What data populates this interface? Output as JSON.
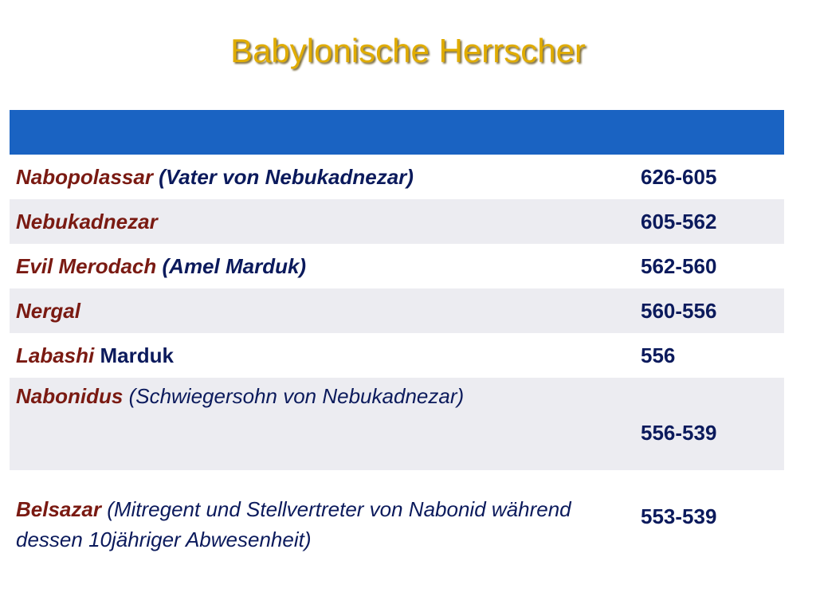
{
  "title": "Babylonische Herrscher",
  "rows": [
    {
      "name": "Nabopolassar",
      "note": " (Vater von Nebukadnezar)",
      "years": "626-605"
    },
    {
      "name": "Nebukadnezar",
      "note": "",
      "years": "605-562"
    },
    {
      "name": "Evil Merodach",
      "note": " (Amel Marduk)",
      "years": "562-560"
    },
    {
      "name": "Nergal",
      "note": "",
      "years": "560-556"
    },
    {
      "name": "Labashi",
      "note": " Marduk",
      "years": "556"
    },
    {
      "name": "Nabonidus",
      "note": " (Schwiegersohn von Nebukadnezar)",
      "years": "556-539"
    },
    {
      "name": "Belsazar",
      "note": " (Mitregent und Stellvertreter von Nabonid während dessen 10jähriger Abwesenheit)",
      "years": "553-539"
    }
  ],
  "colors": {
    "title": "#e0ac00",
    "header_bar": "#1a63c2",
    "row_light": "#ececf1",
    "name_text": "#7a1a12",
    "body_text": "#0b1a5c"
  }
}
